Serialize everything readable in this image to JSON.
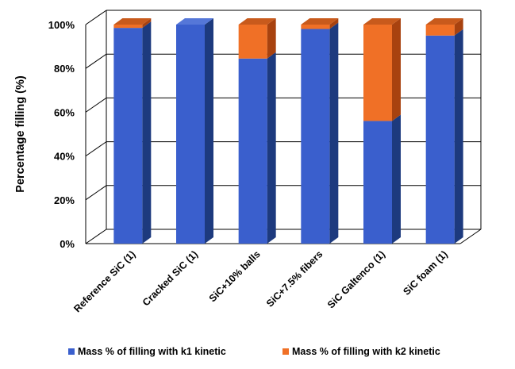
{
  "chart_data": {
    "type": "bar",
    "stacked": true,
    "three_d": true,
    "categories": [
      "Reference SiC (1)",
      "Cracked SiC (1)",
      "SiC+10% balls",
      "SiC+7.5% fibers",
      "SiC Galtenco (1)",
      "SiC foam (1)"
    ],
    "series": [
      {
        "name": "Mass % of filling with k1 kinetic",
        "values": [
          98.5,
          100,
          84.5,
          98,
          56,
          95
        ]
      },
      {
        "name": "Mass % of filling with k2 kinetic",
        "values": [
          1.5,
          0,
          15.5,
          2,
          44,
          5
        ]
      }
    ],
    "ylabel": "Percentage filling (%)",
    "xlabel": "",
    "ylim": [
      0,
      100
    ],
    "yticks": [
      0,
      20,
      40,
      60,
      80,
      100
    ],
    "ytick_labels": [
      "0%",
      "20%",
      "40%",
      "60%",
      "80%",
      "100%"
    ],
    "grid": true,
    "legend_position": "bottom",
    "colors": {
      "k1": "#3a5fcd",
      "k1_side": "#1d3a7e",
      "k1_top": "#5577d8",
      "k2": "#f07026",
      "k2_side": "#a8420f",
      "k2_top": "#c85a1c"
    }
  }
}
